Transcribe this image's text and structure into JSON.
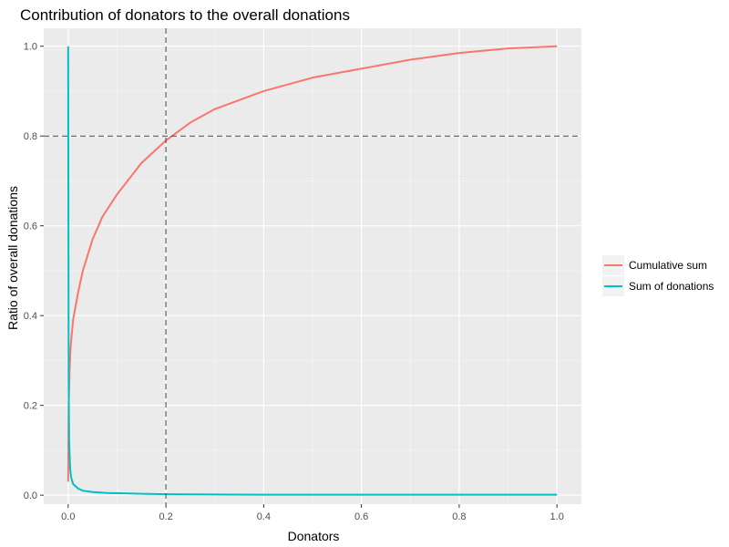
{
  "chart_data": {
    "type": "line",
    "title": "Contribution of donators to the overall donations",
    "xlabel": "Donators",
    "ylabel": "Ratio of overall donations",
    "xlim": [
      -0.05,
      1.05
    ],
    "ylim": [
      -0.02,
      1.04
    ],
    "x_ticks": [
      0.0,
      0.2,
      0.4,
      0.6,
      0.8,
      1.0
    ],
    "x_tick_labels": [
      "0.0",
      "0.2",
      "0.4",
      "0.6",
      "0.8",
      "1.0"
    ],
    "y_ticks": [
      0.0,
      0.2,
      0.4,
      0.6,
      0.8,
      1.0
    ],
    "y_tick_labels": [
      "0.0",
      "0.2",
      "0.4",
      "0.6",
      "0.8",
      "1.0"
    ],
    "grid": true,
    "legend_position": "right",
    "legend_title": "",
    "reference_lines": [
      {
        "orientation": "vertical",
        "value": 0.2,
        "style": "dashed",
        "color": "#2f4f4f"
      },
      {
        "orientation": "horizontal",
        "value": 0.8,
        "style": "dashed",
        "color": "#2f4f4f"
      }
    ],
    "series": [
      {
        "name": "Cumulative sum",
        "color": "#F8766D",
        "x": [
          0.0,
          0.001,
          0.003,
          0.005,
          0.01,
          0.02,
          0.03,
          0.05,
          0.07,
          0.1,
          0.15,
          0.2,
          0.25,
          0.3,
          0.4,
          0.5,
          0.6,
          0.7,
          0.8,
          0.9,
          1.0
        ],
        "y": [
          0.03,
          0.2,
          0.28,
          0.33,
          0.39,
          0.45,
          0.5,
          0.57,
          0.62,
          0.67,
          0.74,
          0.79,
          0.83,
          0.86,
          0.9,
          0.93,
          0.95,
          0.97,
          0.985,
          0.995,
          1.0
        ]
      },
      {
        "name": "Sum of donations",
        "color": "#00BFC4",
        "x": [
          0.0,
          0.0005,
          0.001,
          0.002,
          0.004,
          0.006,
          0.01,
          0.02,
          0.03,
          0.05,
          0.08,
          0.15,
          0.2,
          0.4,
          0.6,
          0.8,
          1.0
        ],
        "y": [
          1.0,
          0.6,
          0.25,
          0.12,
          0.06,
          0.04,
          0.025,
          0.015,
          0.01,
          0.007,
          0.005,
          0.003,
          0.002,
          0.001,
          0.001,
          0.001,
          0.001
        ]
      }
    ]
  }
}
